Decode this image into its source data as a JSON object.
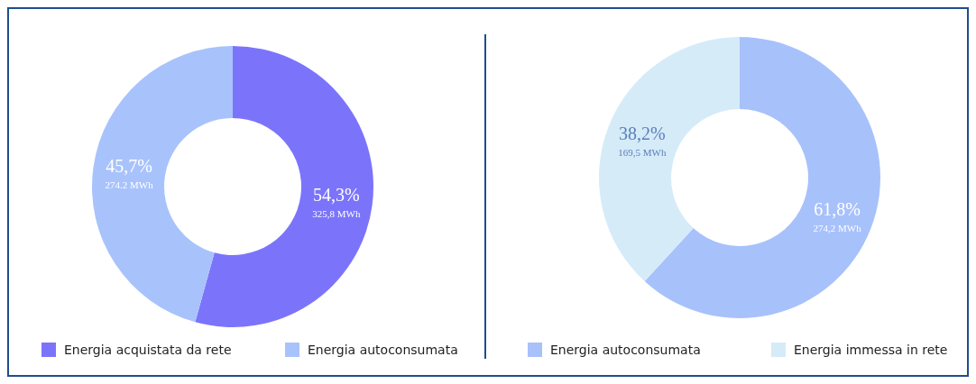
{
  "chart_data": [
    {
      "type": "donut",
      "categories": [
        "Energia acquistata da rete",
        "Energia autoconsumata"
      ],
      "values": [
        325.8,
        274.2
      ],
      "colors": [
        "#7b74fb",
        "#a8c3fb"
      ],
      "value_labels": [
        "54,3%\n325,8 MWh",
        "45,7%\n274.2 MWh"
      ],
      "legend": "bottom"
    },
    {
      "type": "donut",
      "categories": [
        "Energia autoconsumata",
        "Energia immessa in rete"
      ],
      "values": [
        274.2,
        169.5
      ],
      "colors": [
        "#a7c1fb",
        "#d5ebf8"
      ],
      "value_labels": [
        "61,8%\n274,2 MWh",
        "38,2%\n169,5 MWh"
      ],
      "legend": "bottom"
    }
  ]
}
